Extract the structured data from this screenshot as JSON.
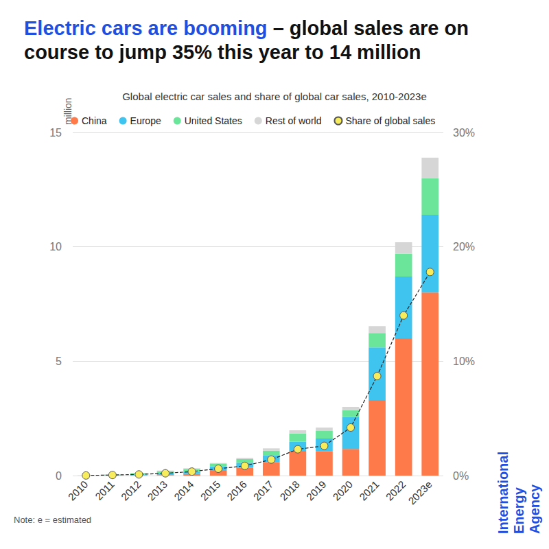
{
  "chart_data": {
    "type": "bar",
    "title": [
      "Electric cars are booming",
      "– global sales are on course to jump 35% this year to 14 million"
    ],
    "subtitle": "Global electric car sales and share of global car sales, 2010-2023e",
    "ylabel": "million",
    "annotations": [
      {
        "text": "Note: e = estimated"
      },
      {
        "text": "International Energy Agency"
      }
    ],
    "categories": [
      "2010",
      "2011",
      "2012",
      "2013",
      "2014",
      "2015",
      "2016",
      "2017",
      "2018",
      "2019",
      "2020",
      "2021",
      "2022",
      "2023e"
    ],
    "series": [
      {
        "name": "China",
        "color": "#ff7a4a",
        "values": [
          0.0,
          0.01,
          0.01,
          0.02,
          0.07,
          0.21,
          0.34,
          0.58,
          1.08,
          1.06,
          1.16,
          3.3,
          6.0,
          8.0
        ]
      },
      {
        "name": "Europe",
        "color": "#3fc4f0",
        "values": [
          0.0,
          0.01,
          0.03,
          0.07,
          0.1,
          0.19,
          0.22,
          0.31,
          0.4,
          0.56,
          1.4,
          2.3,
          2.7,
          3.4
        ]
      },
      {
        "name": "United States",
        "color": "#6be59a",
        "values": [
          0.0,
          0.02,
          0.05,
          0.1,
          0.12,
          0.11,
          0.16,
          0.2,
          0.36,
          0.33,
          0.3,
          0.63,
          1.0,
          1.6
        ]
      },
      {
        "name": "Rest of world",
        "color": "#d6d6d6",
        "values": [
          0.01,
          0.01,
          0.03,
          0.03,
          0.03,
          0.04,
          0.05,
          0.1,
          0.14,
          0.15,
          0.14,
          0.3,
          0.5,
          0.9
        ]
      },
      {
        "name": "Share of global sales",
        "color": "#f7ec5c",
        "type": "line",
        "axis": "y2",
        "marker": "circle",
        "line_style": "dashed",
        "values": [
          0.01,
          0.05,
          0.1,
          0.2,
          0.35,
          0.6,
          0.85,
          1.4,
          2.3,
          2.6,
          4.2,
          8.7,
          14,
          17.8
        ]
      }
    ],
    "stacked": true,
    "ylim": [
      0,
      15
    ],
    "yticks": [
      0,
      5,
      10,
      15
    ],
    "y2lim": [
      0,
      30
    ],
    "y2ticks": [
      {
        "value": 0,
        "label": "0%"
      },
      {
        "value": 10,
        "label": "10%"
      },
      {
        "value": 20,
        "label": "20%"
      },
      {
        "value": 30,
        "label": "30%"
      }
    ],
    "grid": true,
    "legend": "top"
  }
}
